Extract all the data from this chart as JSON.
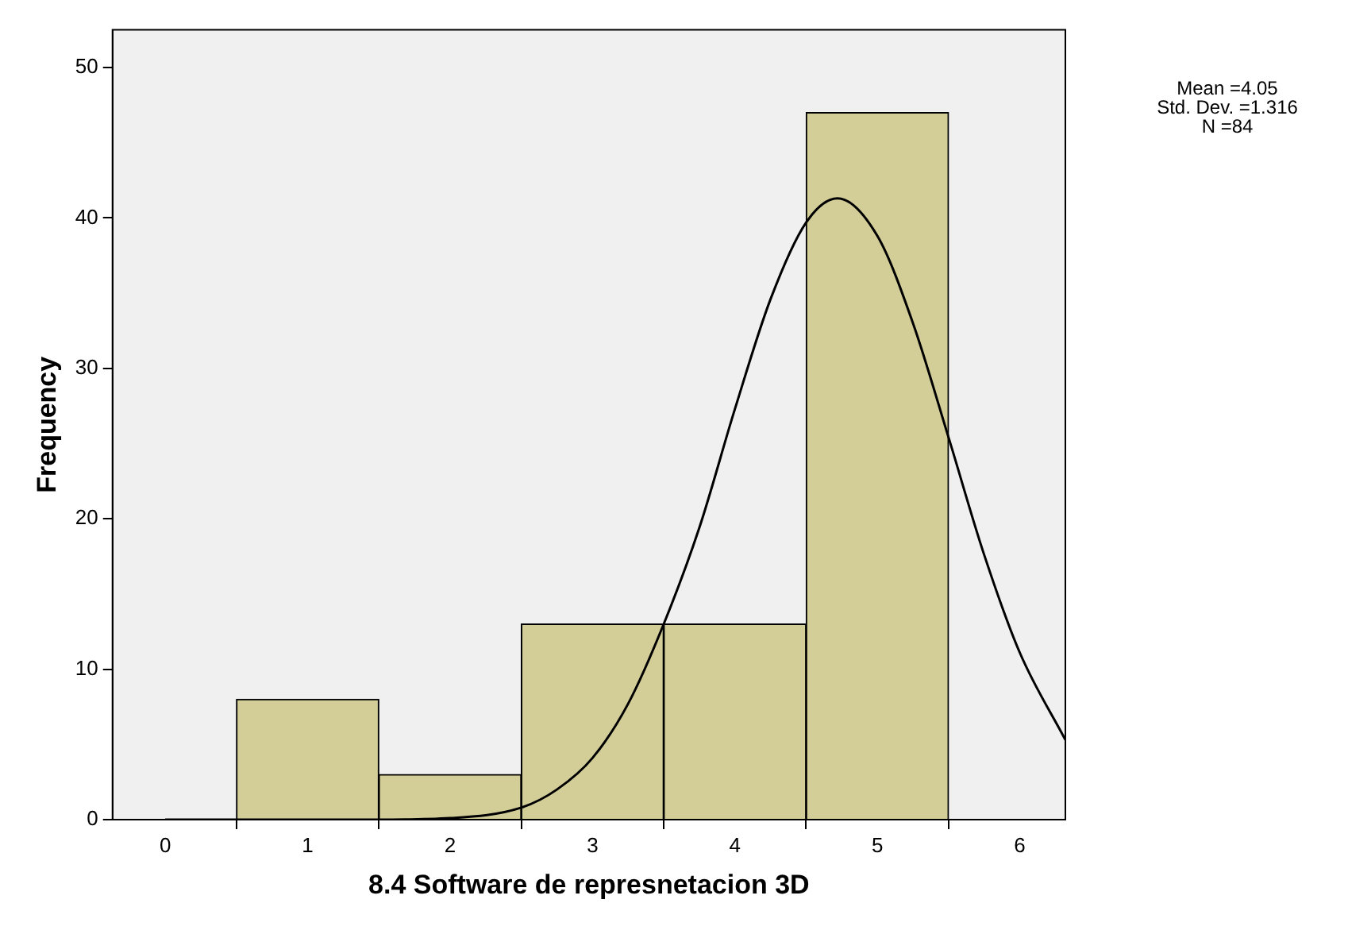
{
  "chart_data": {
    "type": "histogram",
    "xlabel": "8.4 Software de represnetacion 3D",
    "ylabel": "Frequency",
    "bins": [
      0.5,
      1.5,
      2.5,
      3.5,
      4.5,
      5.5
    ],
    "values": [
      8,
      3,
      13,
      13,
      47
    ],
    "color": "#d3ce98",
    "series": [
      {
        "type": "line",
        "color": "#000000",
        "x": [
          0,
          1,
          1.5,
          2,
          2.5,
          2.75,
          3,
          3.25,
          3.5,
          3.75,
          4,
          4.25,
          4.5,
          4.72,
          5,
          5.25,
          5.5,
          5.75,
          6,
          6.32
        ],
        "values": [
          0,
          0,
          0,
          0.1,
          0.8,
          2,
          4.1,
          7.7,
          13,
          19.4,
          27.3,
          34.6,
          39.7,
          41.3,
          38.8,
          33,
          25.4,
          17.6,
          11.1,
          5.3
        ]
      }
    ],
    "xlim": [
      -0.37,
      6.32
    ],
    "xticks": [
      0,
      1,
      2,
      3,
      4,
      5,
      6
    ],
    "ylim": [
      0,
      52.5
    ],
    "yticks": [
      0,
      10,
      20,
      30,
      40,
      50
    ],
    "grid": false,
    "legend": false,
    "marker": "none",
    "annotations": [
      "Mean =4.05",
      "Std. Dev. =1.316",
      "N =84"
    ]
  }
}
